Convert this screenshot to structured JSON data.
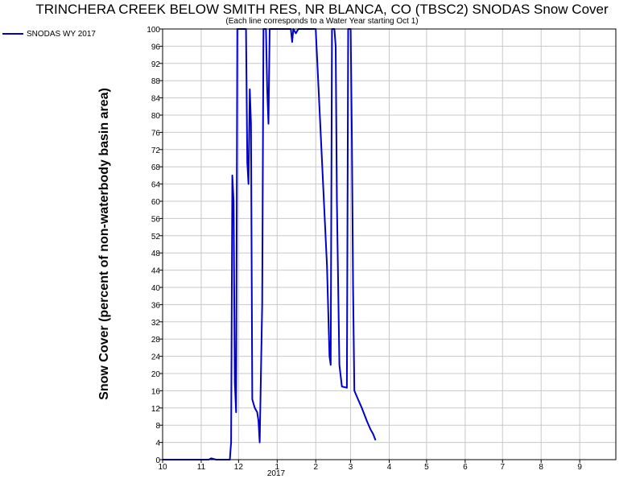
{
  "chart_data": {
    "type": "line",
    "title": "TRINCHERA CREEK BELOW SMITH RES, NR BLANCA, CO (TBSC2) SNODAS Snow Cover",
    "subtitle": "(Each line corresponds to a Water Year starting Oct 1)",
    "xlabel": "",
    "ylabel": "Snow Cover (percent of non-waterbody basin area)",
    "ylim": [
      0,
      100
    ],
    "yticks": [
      0,
      4,
      8,
      12,
      16,
      20,
      24,
      28,
      32,
      36,
      40,
      44,
      48,
      52,
      56,
      60,
      64,
      68,
      72,
      76,
      80,
      84,
      88,
      92,
      96,
      100
    ],
    "xlim": [
      "2016-10-01",
      "2017-09-30"
    ],
    "xticks": [
      {
        "date": "2016-10-01",
        "label": "10"
      },
      {
        "date": "2016-11-01",
        "label": "11"
      },
      {
        "date": "2016-12-01",
        "label": "12"
      },
      {
        "date": "2017-01-01",
        "label": "1"
      },
      {
        "date": "2017-02-01",
        "label": "2"
      },
      {
        "date": "2017-03-01",
        "label": "3"
      },
      {
        "date": "2017-04-01",
        "label": "4"
      },
      {
        "date": "2017-05-01",
        "label": "5"
      },
      {
        "date": "2017-06-01",
        "label": "6"
      },
      {
        "date": "2017-07-01",
        "label": "7"
      },
      {
        "date": "2017-08-01",
        "label": "8"
      },
      {
        "date": "2017-09-01",
        "label": "9"
      }
    ],
    "year_label": "2017",
    "grid": true,
    "legend_position": "top-left outside",
    "series": [
      {
        "name": "SNODAS WY 2017",
        "color": "#0000cc",
        "points": [
          [
            "2016-10-01",
            0
          ],
          [
            "2016-11-07",
            0
          ],
          [
            "2016-11-09",
            0.3
          ],
          [
            "2016-11-13",
            0
          ],
          [
            "2016-11-24",
            0
          ],
          [
            "2016-11-25",
            4
          ],
          [
            "2016-11-26",
            66
          ],
          [
            "2016-11-27",
            60
          ],
          [
            "2016-11-28",
            18
          ],
          [
            "2016-11-29",
            11
          ],
          [
            "2016-11-30",
            100
          ],
          [
            "2016-12-07",
            100
          ],
          [
            "2016-12-08",
            69
          ],
          [
            "2016-12-09",
            64
          ],
          [
            "2016-12-10",
            86
          ],
          [
            "2016-12-11",
            78
          ],
          [
            "2016-12-12",
            14
          ],
          [
            "2016-12-14",
            12
          ],
          [
            "2016-12-16",
            11
          ],
          [
            "2016-12-17",
            9
          ],
          [
            "2016-12-18",
            4
          ],
          [
            "2016-12-20",
            36
          ],
          [
            "2016-12-21",
            100
          ],
          [
            "2016-12-23",
            100
          ],
          [
            "2016-12-24",
            86
          ],
          [
            "2016-12-25",
            78
          ],
          [
            "2016-12-26",
            100
          ],
          [
            "2017-01-12",
            100
          ],
          [
            "2017-01-13",
            97
          ],
          [
            "2017-01-14",
            100
          ],
          [
            "2017-01-16",
            99
          ],
          [
            "2017-01-18",
            100
          ],
          [
            "2017-02-01",
            100
          ],
          [
            "2017-02-10",
            45
          ],
          [
            "2017-02-12",
            24
          ],
          [
            "2017-02-13",
            22
          ],
          [
            "2017-02-14",
            100
          ],
          [
            "2017-02-16",
            100
          ],
          [
            "2017-02-17",
            96
          ],
          [
            "2017-02-18",
            60
          ],
          [
            "2017-02-20",
            22
          ],
          [
            "2017-02-22",
            17
          ],
          [
            "2017-02-26",
            16.7
          ],
          [
            "2017-02-27",
            100
          ],
          [
            "2017-03-01",
            100
          ],
          [
            "2017-03-02",
            75
          ],
          [
            "2017-03-03",
            40
          ],
          [
            "2017-03-04",
            16
          ],
          [
            "2017-03-07",
            14
          ],
          [
            "2017-03-10",
            12
          ],
          [
            "2017-03-14",
            9
          ],
          [
            "2017-03-17",
            7
          ],
          [
            "2017-03-19",
            6
          ],
          [
            "2017-03-21",
            4.5
          ]
        ]
      }
    ]
  }
}
